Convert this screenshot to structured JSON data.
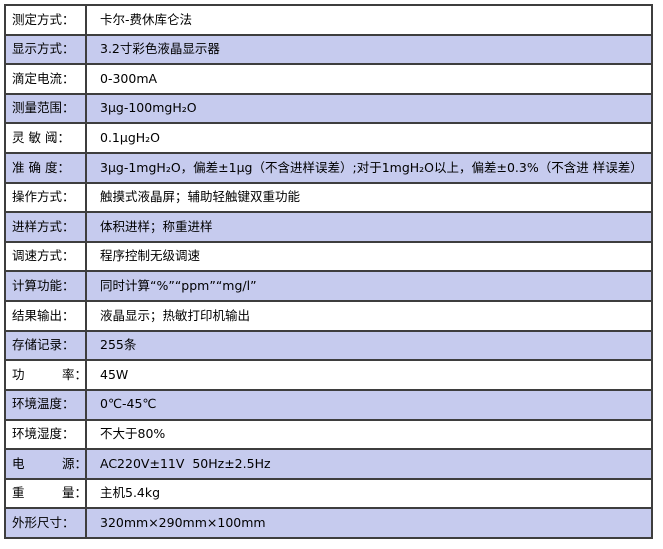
{
  "page": {
    "background": "#ffffff",
    "colors": {
      "row_base": "#ffffff",
      "row_alt": "#c6cbee",
      "border": "#3e3e3e",
      "text": "#000000"
    }
  },
  "spec_table": {
    "columns": [
      "label",
      "value"
    ],
    "rows": [
      {
        "label": "测定方式：",
        "value": "卡尔-费休库仑法"
      },
      {
        "label": "显示方式：",
        "value": "3.2寸彩色液晶显示器"
      },
      {
        "label": "滴定电流：",
        "value": "0-300mA"
      },
      {
        "label": "测量范围：",
        "value": "3μg-100mgH₂O"
      },
      {
        "label": "灵 敏 阈：",
        "value": "0.1μgH₂O"
      },
      {
        "label": "准 确 度：",
        "value": "3μg-1mgH₂O，偏差±1μg（不含进样误差）;对于1mgH₂O以上，偏差±0.3%（不含进 样误差）"
      },
      {
        "label": "操作方式：",
        "value": "触摸式液晶屏；辅助轻触键双重功能"
      },
      {
        "label": "进样方式：",
        "value": "体积进样；称重进样"
      },
      {
        "label": "调速方式：",
        "value": "程序控制无级调速"
      },
      {
        "label": "计算功能：",
        "value": "同时计算“%”“ppm”“mg/l”"
      },
      {
        "label": "结果输出：",
        "value": "液晶显示；热敏打印机输出"
      },
      {
        "label": "存储记录：",
        "value": "255条"
      },
      {
        "label": "功　　　率：",
        "value": "45W"
      },
      {
        "label": "环境温度：",
        "value": "0℃-45℃"
      },
      {
        "label": "环境湿度：",
        "value": "不大于80%"
      },
      {
        "label": "电　　　源：",
        "value": "AC220V±11V  50Hz±2.5Hz"
      },
      {
        "label": "重　　　量：",
        "value": "主机5.4kg"
      },
      {
        "label": "外形尺寸：",
        "value": "320mm×290mm×100mm"
      }
    ]
  }
}
